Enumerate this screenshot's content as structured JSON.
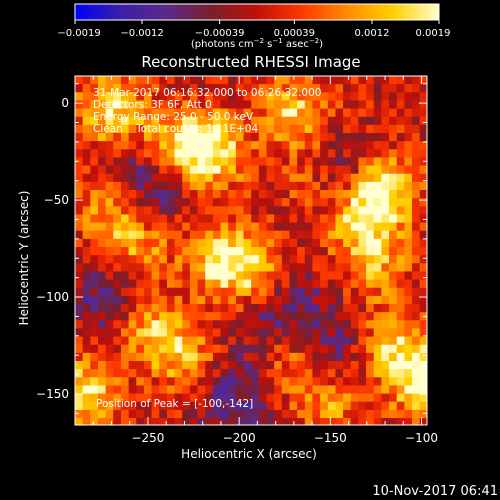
{
  "chart_data": {
    "type": "heatmap",
    "title": "Reconstructed RHESSI Image",
    "xlabel": "Heliocentric X (arcsec)",
    "ylabel": "Heliocentric Y (arcsec)",
    "xlim": [
      -290,
      -97
    ],
    "ylim": [
      -166,
      14
    ],
    "x_ticks": [
      -250,
      -200,
      -150,
      -100
    ],
    "y_ticks": [
      0,
      -50,
      -100,
      -150
    ],
    "x_tick_labels": [
      "−250",
      "−200",
      "−150",
      "−100"
    ],
    "y_tick_labels": [
      "0",
      "−50",
      "−100",
      "−150"
    ],
    "colorbar": {
      "range": [
        -0.0019,
        0.0019
      ],
      "ticks": [
        -0.0019,
        -0.0012,
        -0.00039,
        0.00039,
        0.0012,
        0.0019
      ],
      "tick_labels": [
        "−0.0019",
        "−0.0012",
        "−0.00039",
        "0.00039",
        "0.0012",
        "0.0019"
      ],
      "units_label": "(photons cm",
      "units_exp1": "−2",
      "units_mid": " s",
      "units_exp2": "−1",
      "units_mid2": " asec",
      "units_exp3": "−2",
      "units_end": ")",
      "colormap_stops": [
        "#0000ff",
        "#3b1fa8",
        "#5a2a8a",
        "#7a1f2a",
        "#c0100a",
        "#ff3a00",
        "#ff8c00",
        "#ffd000",
        "#ffffd0"
      ]
    },
    "annotations": [
      "31-Mar-2017 06:16:32.000 to 06:26:32.000",
      "Detectors: 3F 6F, Att 0",
      "Energy Range: 25.0 - 50.0 keV",
      "Clean    Total counts: 1.11E+04"
    ],
    "peak_text": "Position of Peak = [-100,-142]",
    "hot_spots": [
      {
        "x": -270,
        "y": -5,
        "v": 0.0016
      },
      {
        "x": -215,
        "y": -25,
        "v": 0.0018
      },
      {
        "x": -235,
        "y": -22,
        "v": 0.0015
      },
      {
        "x": -170,
        "y": -5,
        "v": 0.0014
      },
      {
        "x": -120,
        "y": -45,
        "v": 0.0019
      },
      {
        "x": -135,
        "y": -60,
        "v": 0.0016
      },
      {
        "x": -270,
        "y": -55,
        "v": 0.0012
      },
      {
        "x": -255,
        "y": -75,
        "v": 0.0011
      },
      {
        "x": -210,
        "y": -80,
        "v": 0.0017
      },
      {
        "x": -190,
        "y": -90,
        "v": 0.0014
      },
      {
        "x": -125,
        "y": -85,
        "v": 0.001
      },
      {
        "x": -250,
        "y": -115,
        "v": 0.0013
      },
      {
        "x": -230,
        "y": -130,
        "v": 0.0012
      },
      {
        "x": -285,
        "y": -150,
        "v": 0.0016
      },
      {
        "x": -175,
        "y": -135,
        "v": 0.0009
      },
      {
        "x": -120,
        "y": -125,
        "v": 0.0015
      },
      {
        "x": -100,
        "y": -142,
        "v": 0.0019
      },
      {
        "x": -150,
        "y": -155,
        "v": 0.001
      },
      {
        "x": -160,
        "y": -40,
        "v": 0.0008
      }
    ],
    "cold_spots": [
      {
        "x": -250,
        "y": -40,
        "v": -0.0012
      },
      {
        "x": -145,
        "y": -40,
        "v": -0.001
      },
      {
        "x": -180,
        "y": -105,
        "v": -0.0011
      },
      {
        "x": -140,
        "y": -125,
        "v": -0.0009
      },
      {
        "x": -200,
        "y": -150,
        "v": -0.001
      },
      {
        "x": -270,
        "y": -100,
        "v": -0.0009
      }
    ]
  },
  "footer_timestamp": "10-Nov-2017 06:41"
}
